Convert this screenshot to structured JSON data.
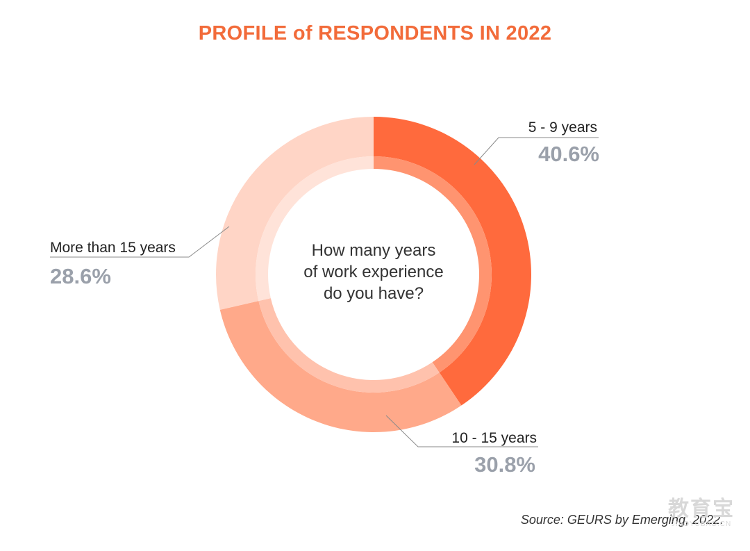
{
  "title": "PROFILE of RESPONDENTS IN 2022",
  "source": "Source: GEURS by Emerging, 2022.",
  "watermark": {
    "main": "教育宝",
    "sub": "JIAOYUBAO.CN"
  },
  "colors": {
    "title": "#f26b3a",
    "percent_label": "#9aa0aa",
    "leader_line": "#8a8a8a"
  },
  "chart_data": {
    "type": "pie",
    "variant": "donut",
    "center_text": [
      "How many years",
      "of work experience",
      "do you have?"
    ],
    "slices": [
      {
        "label": "5 - 9 years",
        "value": 40.6,
        "value_label": "40.6%",
        "color": "#ff6a3d",
        "inner_color": "#ff9470"
      },
      {
        "label": "10 - 15 years",
        "value": 30.8,
        "value_label": "30.8%",
        "color": "#ffa98a",
        "inner_color": "#ffc2ad"
      },
      {
        "label": "More than 15 years",
        "value": 28.6,
        "value_label": "28.6%",
        "color": "#ffd5c6",
        "inner_color": "#ffe3d9"
      }
    ],
    "start_angle_deg": 0,
    "direction": "clockwise"
  }
}
